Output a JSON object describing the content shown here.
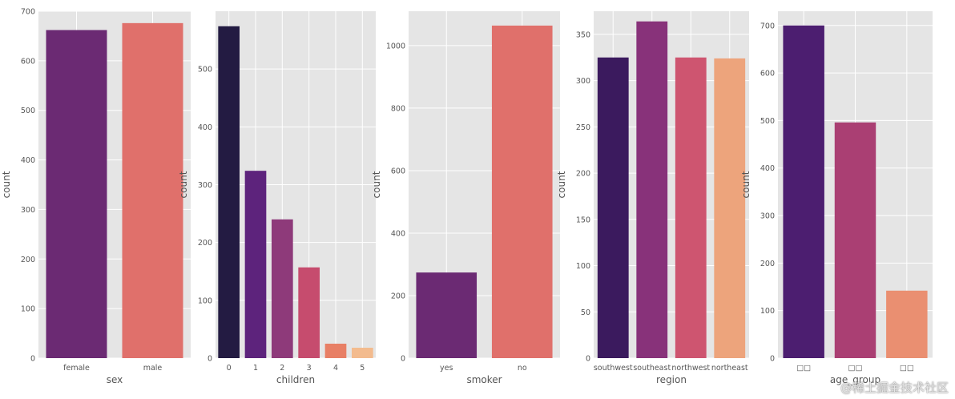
{
  "chart_data": [
    {
      "type": "bar",
      "xlabel": "sex",
      "ylabel": "count",
      "categories": [
        "female",
        "male"
      ],
      "values": [
        662,
        676
      ],
      "ylim": [
        0,
        700
      ],
      "yticks": [
        0,
        100,
        200,
        300,
        400,
        500,
        600,
        700
      ],
      "colors": [
        "#6b2a73",
        "#e0706b"
      ],
      "grid": true
    },
    {
      "type": "bar",
      "xlabel": "children",
      "ylabel": "count",
      "categories": [
        "0",
        "1",
        "2",
        "3",
        "4",
        "5"
      ],
      "values": [
        574,
        324,
        240,
        157,
        25,
        18
      ],
      "ylim": [
        0,
        600
      ],
      "yticks": [
        0,
        100,
        200,
        300,
        400,
        500
      ],
      "colors": [
        "#231b42",
        "#5d237c",
        "#8e3a7a",
        "#c64c6e",
        "#e87f65",
        "#f3bb8e"
      ],
      "grid": true
    },
    {
      "type": "bar",
      "xlabel": "smoker",
      "ylabel": "count",
      "categories": [
        "yes",
        "no"
      ],
      "values": [
        274,
        1064
      ],
      "ylim": [
        0,
        1110
      ],
      "yticks": [
        0,
        200,
        400,
        600,
        800,
        1000
      ],
      "colors": [
        "#6b2a73",
        "#e0706b"
      ],
      "grid": true
    },
    {
      "type": "bar",
      "xlabel": "region",
      "ylabel": "count",
      "categories": [
        "southwest",
        "southeast",
        "northwest",
        "northeast"
      ],
      "values": [
        325,
        364,
        325,
        324
      ],
      "ylim": [
        0,
        375
      ],
      "yticks": [
        0,
        50,
        100,
        150,
        200,
        250,
        300,
        350
      ],
      "colors": [
        "#3b1a5e",
        "#88327a",
        "#ce5570",
        "#eda47c"
      ],
      "grid": true
    },
    {
      "type": "bar",
      "xlabel": "age_group",
      "ylabel": "count",
      "categories": [
        "□□",
        "□□",
        "□□"
      ],
      "values": [
        700,
        496,
        142
      ],
      "ylim": [
        0,
        730
      ],
      "yticks": [
        0,
        100,
        200,
        300,
        400,
        500,
        600,
        700
      ],
      "colors": [
        "#4c1e70",
        "#aa3f73",
        "#ea8f71"
      ],
      "grid": true
    }
  ],
  "watermark": "@稀土掘金技术社区"
}
